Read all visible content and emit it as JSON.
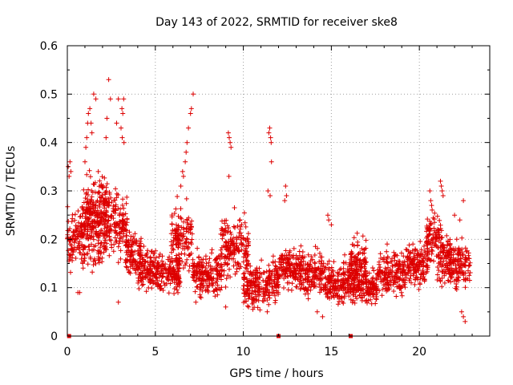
{
  "colors": {
    "series": "#dd0000",
    "grid": "#a0a0a0",
    "axis": "#000000"
  },
  "chart_data": {
    "type": "scatter",
    "title": "Day 143 of 2022, SRMTID for receiver ske8",
    "xlabel": "GPS time / hours",
    "ylabel": "SRMTID / TECUs",
    "xlim": [
      0,
      24
    ],
    "ylim": [
      0,
      0.6
    ],
    "xticks": [
      0,
      5,
      10,
      15,
      20
    ],
    "xtick_labels": [
      "0",
      "5",
      "10",
      "15",
      "20"
    ],
    "yticks": [
      0,
      0.1,
      0.2,
      0.3,
      0.4,
      0.5,
      0.6
    ],
    "ytick_labels": [
      "0",
      "0.1",
      "0.2",
      "0.3",
      "0.4",
      "0.5",
      "0.6"
    ],
    "grid": true,
    "marker": "+",
    "zero_markers_x": [
      0.1,
      12.0,
      16.1
    ],
    "segments": [
      [
        0.0,
        1.0,
        0.2,
        0.06
      ],
      [
        0.8,
        2.0,
        0.22,
        0.07
      ],
      [
        1.0,
        2.4,
        0.26,
        0.08
      ],
      [
        2.0,
        3.4,
        0.23,
        0.06
      ],
      [
        3.3,
        4.2,
        0.17,
        0.04
      ],
      [
        4.0,
        5.0,
        0.14,
        0.04
      ],
      [
        5.0,
        6.4,
        0.13,
        0.04
      ],
      [
        5.9,
        7.1,
        0.2,
        0.06
      ],
      [
        7.1,
        8.8,
        0.13,
        0.04
      ],
      [
        8.7,
        10.3,
        0.18,
        0.06
      ],
      [
        10.0,
        11.5,
        0.1,
        0.04
      ],
      [
        11.4,
        12.0,
        0.12,
        0.04
      ],
      [
        12.0,
        13.3,
        0.14,
        0.04
      ],
      [
        13.2,
        14.6,
        0.13,
        0.04
      ],
      [
        14.6,
        16.2,
        0.11,
        0.04
      ],
      [
        16.0,
        17.0,
        0.15,
        0.05
      ],
      [
        16.2,
        17.6,
        0.1,
        0.03
      ],
      [
        17.6,
        19.2,
        0.13,
        0.04
      ],
      [
        19.2,
        20.5,
        0.15,
        0.04
      ],
      [
        20.4,
        21.2,
        0.2,
        0.05
      ],
      [
        21.0,
        21.8,
        0.16,
        0.05
      ],
      [
        21.6,
        22.9,
        0.15,
        0.05
      ]
    ],
    "spikes": [
      [
        1.0,
        0.36
      ],
      [
        1.05,
        0.39
      ],
      [
        1.1,
        0.41
      ],
      [
        1.15,
        0.44
      ],
      [
        1.2,
        0.46
      ],
      [
        1.28,
        0.47
      ],
      [
        1.35,
        0.44
      ],
      [
        1.4,
        0.42
      ],
      [
        1.5,
        0.5
      ],
      [
        1.62,
        0.49
      ],
      [
        2.2,
        0.41
      ],
      [
        2.25,
        0.45
      ],
      [
        2.35,
        0.53
      ],
      [
        2.45,
        0.49
      ],
      [
        2.8,
        0.44
      ],
      [
        2.9,
        0.49
      ],
      [
        3.1,
        0.47
      ],
      [
        3.15,
        0.46
      ],
      [
        3.2,
        0.49
      ],
      [
        3.05,
        0.43
      ],
      [
        3.12,
        0.41
      ],
      [
        3.22,
        0.4
      ],
      [
        0.05,
        0.35
      ],
      [
        0.1,
        0.33
      ],
      [
        0.15,
        0.36
      ],
      [
        0.2,
        0.34
      ],
      [
        6.45,
        0.31
      ],
      [
        6.55,
        0.34
      ],
      [
        6.6,
        0.33
      ],
      [
        6.7,
        0.36
      ],
      [
        6.75,
        0.38
      ],
      [
        6.8,
        0.4
      ],
      [
        6.88,
        0.43
      ],
      [
        7.0,
        0.46
      ],
      [
        7.05,
        0.47
      ],
      [
        7.15,
        0.5
      ],
      [
        9.15,
        0.42
      ],
      [
        9.2,
        0.41
      ],
      [
        9.25,
        0.4
      ],
      [
        9.3,
        0.39
      ],
      [
        9.18,
        0.33
      ],
      [
        11.45,
        0.42
      ],
      [
        11.5,
        0.43
      ],
      [
        11.55,
        0.41
      ],
      [
        11.58,
        0.4
      ],
      [
        11.6,
        0.36
      ],
      [
        11.4,
        0.3
      ],
      [
        11.52,
        0.29
      ],
      [
        12.4,
        0.31
      ],
      [
        12.45,
        0.29
      ],
      [
        12.35,
        0.28
      ],
      [
        20.6,
        0.3
      ],
      [
        20.65,
        0.28
      ],
      [
        20.7,
        0.27
      ],
      [
        21.2,
        0.32
      ],
      [
        21.25,
        0.31
      ],
      [
        21.3,
        0.3
      ],
      [
        21.35,
        0.29
      ],
      [
        22.0,
        0.25
      ],
      [
        22.3,
        0.24
      ],
      [
        22.5,
        0.28
      ],
      [
        14.8,
        0.25
      ],
      [
        14.85,
        0.24
      ],
      [
        15.0,
        0.23
      ]
    ],
    "dips": [
      [
        0.6,
        0.09
      ],
      [
        0.7,
        0.09
      ],
      [
        2.9,
        0.07
      ],
      [
        10.3,
        0.06
      ],
      [
        14.2,
        0.05
      ],
      [
        14.5,
        0.04
      ],
      [
        22.4,
        0.05
      ],
      [
        22.5,
        0.04
      ],
      [
        22.6,
        0.03
      ],
      [
        9.0,
        0.06
      ],
      [
        7.3,
        0.07
      ]
    ]
  }
}
